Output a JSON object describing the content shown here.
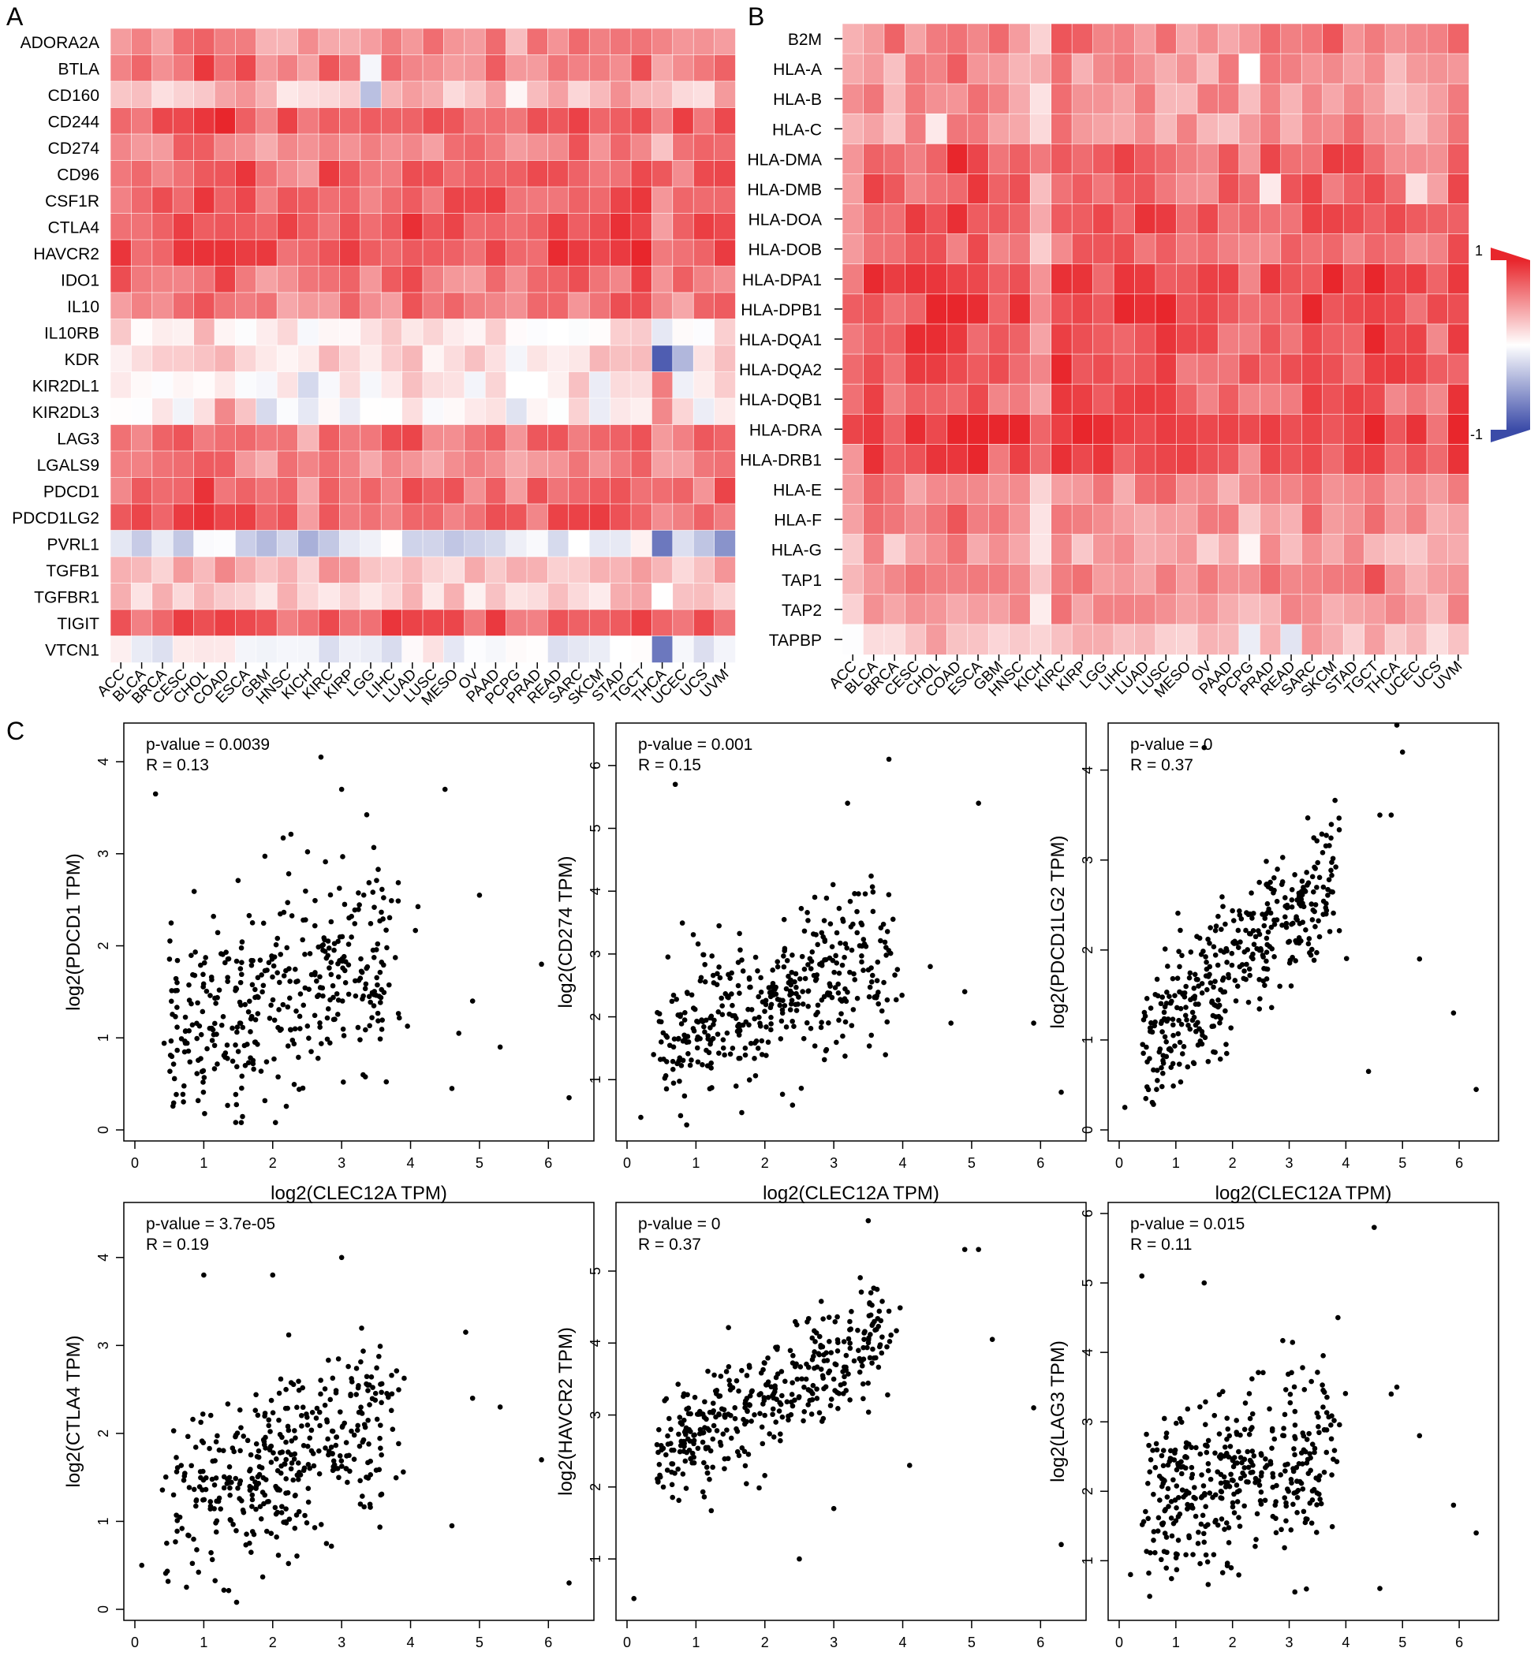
{
  "figure": {
    "panel_labels": [
      "A",
      "B",
      "C"
    ]
  },
  "colors": {
    "high": "#E8262C",
    "mid": "#FFFFFF",
    "low": "#3B4BA8",
    "point": "#000000",
    "cell_border": "#FFFFFF"
  },
  "chart_data": [
    {
      "type": "heatmap",
      "panel": "A",
      "rows": [
        "ADORA2A",
        "BTLA",
        "CD160",
        "CD244",
        "CD274",
        "CD96",
        "CSF1R",
        "CTLA4",
        "HAVCR2",
        "IDO1",
        "IL10",
        "IL10RB",
        "KDR",
        "KIR2DL1",
        "KIR2DL3",
        "LAG3",
        "LGALS9",
        "PDCD1",
        "PDCD1LG2",
        "PVRL1",
        "TGFB1",
        "TGFBR1",
        "TIGIT",
        "VTCN1"
      ],
      "columns": [
        "ACC",
        "BLCA",
        "BRCA",
        "CESC",
        "CHOL",
        "COAD",
        "ESCA",
        "GBM",
        "HNSC",
        "KICH",
        "KIRC",
        "KIRP",
        "LGG",
        "LIHC",
        "LUAD",
        "LUSC",
        "MESO",
        "OV",
        "PAAD",
        "PCPG",
        "PRAD",
        "READ",
        "SARC",
        "SKCM",
        "STAD",
        "TGCT",
        "THCA",
        "UCEC",
        "UCS",
        "UVM"
      ],
      "row_base": [
        0.5,
        0.6,
        0.25,
        0.75,
        0.55,
        0.7,
        0.7,
        0.72,
        0.8,
        0.6,
        0.55,
        0.05,
        0.15,
        0.02,
        0.02,
        0.6,
        0.5,
        0.65,
        0.7,
        -0.2,
        0.3,
        0.2,
        0.75,
        -0.08
      ],
      "col_adjust": [
        0.05,
        0.0,
        0.02,
        0.05,
        0.15,
        0.15,
        0.1,
        -0.05,
        0.0,
        -0.1,
        0.05,
        0.0,
        -0.05,
        0.05,
        0.1,
        0.05,
        0.0,
        0.0,
        0.05,
        -0.05,
        0.0,
        0.05,
        0.1,
        0.05,
        0.1,
        0.15,
        -0.1,
        0.0,
        0.0,
        0.05
      ],
      "special": [
        {
          "row": "KDR",
          "col": "THCA",
          "value": -0.9
        },
        {
          "row": "KDR",
          "col": "UCEC",
          "value": -0.4
        },
        {
          "row": "PVRL1",
          "col": "THCA",
          "value": -0.75
        },
        {
          "row": "PVRL1",
          "col": "UVM",
          "value": -0.6
        },
        {
          "row": "VTCN1",
          "col": "THCA",
          "value": -0.75
        },
        {
          "row": "KIR2DL3",
          "col": "COAD",
          "value": 0.55
        },
        {
          "row": "KIR2DL1",
          "col": "THCA",
          "value": 0.6
        },
        {
          "row": "KIR2DL3",
          "col": "THCA",
          "value": 0.55
        },
        {
          "row": "CD160",
          "col": "LGG",
          "value": -0.35
        },
        {
          "row": "BTLA",
          "col": "LGG",
          "value": -0.05
        }
      ],
      "value_range": [
        -1,
        1
      ]
    },
    {
      "type": "heatmap",
      "panel": "B",
      "rows": [
        "B2M",
        "HLA-A",
        "HLA-B",
        "HLA-C",
        "HLA-DMA",
        "HLA-DMB",
        "HLA-DOA",
        "HLA-DOB",
        "HLA-DPA1",
        "HLA-DPB1",
        "HLA-DQA1",
        "HLA-DQA2",
        "HLA-DQB1",
        "HLA-DRA",
        "HLA-DRB1",
        "HLA-E",
        "HLA-F",
        "HLA-G",
        "TAP1",
        "TAP2",
        "TAPBP"
      ],
      "columns": [
        "ACC",
        "BLCA",
        "BRCA",
        "CESC",
        "CHOL",
        "COAD",
        "ESCA",
        "GBM",
        "HNSC",
        "KICH",
        "KIRC",
        "KIRP",
        "LGG",
        "LIHC",
        "LUAD",
        "LUSC",
        "MESO",
        "OV",
        "PAAD",
        "PCPG",
        "PRAD",
        "READ",
        "SARC",
        "SKCM",
        "STAD",
        "TGCT",
        "THCA",
        "UCEC",
        "UCS",
        "UVM"
      ],
      "row_base": [
        0.55,
        0.45,
        0.45,
        0.45,
        0.7,
        0.65,
        0.75,
        0.6,
        0.8,
        0.8,
        0.75,
        0.75,
        0.7,
        0.85,
        0.75,
        0.5,
        0.5,
        0.35,
        0.5,
        0.4,
        0.25
      ],
      "col_adjust": [
        -0.1,
        0.05,
        0.0,
        0.05,
        0.1,
        0.15,
        0.1,
        0.0,
        0.05,
        -0.2,
        0.1,
        0.05,
        0.05,
        0.05,
        0.05,
        0.05,
        0.0,
        0.0,
        0.0,
        -0.1,
        0.05,
        0.0,
        0.1,
        0.1,
        0.1,
        0.15,
        0.0,
        0.0,
        -0.05,
        0.1
      ],
      "special": [
        {
          "row": "HLA-A",
          "col": "PCPG",
          "value": 0.0
        },
        {
          "row": "HLA-DMB",
          "col": "PRAD",
          "value": 0.1
        },
        {
          "row": "HLA-DMB",
          "col": "UCEC",
          "value": 0.15
        },
        {
          "row": "TAPBP",
          "col": "PCPG",
          "value": -0.1
        },
        {
          "row": "TAPBP",
          "col": "READ",
          "value": -0.15
        },
        {
          "row": "HLA-C",
          "col": "CHOL",
          "value": 0.1
        },
        {
          "row": "HLA-G",
          "col": "PCPG",
          "value": 0.05
        }
      ],
      "value_range": [
        -1,
        1
      ],
      "legend": {
        "max_label": "1",
        "min_label": "-1"
      }
    },
    {
      "type": "scatter",
      "panel": "C",
      "title": "p-value = 0.0039",
      "r_text": "R = 0.13",
      "xlabel": "log2(CLEC12A TPM)",
      "ylabel": "log2(PDCD1 TPM)",
      "xlim": [
        0,
        6.5
      ],
      "ylim": [
        0,
        4.3
      ],
      "xticks": [
        0,
        1,
        2,
        3,
        4,
        5,
        6
      ],
      "yticks": [
        0,
        1,
        2,
        3,
        4
      ],
      "slope": 0.25,
      "intercept": 1.0,
      "noise": 0.75,
      "n": 400,
      "seed": 11,
      "outliers": [
        [
          6.3,
          0.35
        ],
        [
          5.9,
          1.8
        ],
        [
          5.3,
          0.9
        ],
        [
          5.0,
          2.55
        ],
        [
          4.9,
          1.4
        ],
        [
          4.6,
          0.45
        ],
        [
          4.7,
          1.05
        ],
        [
          4.5,
          3.7
        ],
        [
          0.3,
          3.65
        ],
        [
          2.7,
          4.05
        ],
        [
          3.0,
          3.7
        ]
      ]
    },
    {
      "type": "scatter",
      "panel": "C",
      "title": "p-value = 0.001",
      "r_text": "R = 0.15",
      "xlabel": "log2(CLEC12A TPM)",
      "ylabel": "log2(CD274 TPM)",
      "xlim": [
        0,
        6.5
      ],
      "ylim": [
        0.2,
        6.5
      ],
      "xticks": [
        0,
        1,
        2,
        3,
        4,
        5,
        6
      ],
      "yticks": [
        1,
        2,
        3,
        4,
        5,
        6
      ],
      "slope": 0.35,
      "intercept": 1.5,
      "noise": 0.8,
      "n": 400,
      "seed": 23,
      "outliers": [
        [
          6.3,
          0.8
        ],
        [
          5.9,
          1.9
        ],
        [
          5.1,
          5.4
        ],
        [
          4.9,
          2.4
        ],
        [
          4.7,
          1.9
        ],
        [
          4.4,
          2.8
        ],
        [
          3.8,
          6.1
        ],
        [
          3.2,
          5.4
        ],
        [
          0.7,
          5.7
        ],
        [
          0.2,
          0.4
        ]
      ]
    },
    {
      "type": "scatter",
      "panel": "C",
      "title": "p-value = 0",
      "r_text": "R = 0.37",
      "xlabel": "log2(CLEC12A TPM)",
      "ylabel": "log2(PDCD1LG2 TPM)",
      "xlim": [
        0,
        6.5
      ],
      "ylim": [
        0,
        4.4
      ],
      "xticks": [
        0,
        1,
        2,
        3,
        4,
        5,
        6
      ],
      "yticks": [
        0,
        1,
        2,
        3,
        4
      ],
      "slope": 0.55,
      "intercept": 0.7,
      "noise": 0.5,
      "n": 400,
      "seed": 37,
      "outliers": [
        [
          6.3,
          0.45
        ],
        [
          5.9,
          1.3
        ],
        [
          5.3,
          1.9
        ],
        [
          4.6,
          3.5
        ],
        [
          4.9,
          4.5
        ],
        [
          5.0,
          4.2
        ],
        [
          4.4,
          0.65
        ],
        [
          4.8,
          3.5
        ],
        [
          1.5,
          4.25
        ],
        [
          0.1,
          0.25
        ]
      ]
    },
    {
      "type": "scatter",
      "panel": "C",
      "title": "p-value = 3.7e-05",
      "r_text": "R = 0.19",
      "xlabel": "log2(CLEC12A TPM)",
      "ylabel": "log2(CTLA4 TPM)",
      "xlim": [
        0,
        6.5
      ],
      "ylim": [
        0,
        4.5
      ],
      "xticks": [
        0,
        1,
        2,
        3,
        4,
        5,
        6
      ],
      "yticks": [
        0,
        1,
        2,
        3,
        4
      ],
      "slope": 0.35,
      "intercept": 0.9,
      "noise": 0.65,
      "n": 400,
      "seed": 51,
      "outliers": [
        [
          6.3,
          0.3
        ],
        [
          5.9,
          1.7
        ],
        [
          5.3,
          2.3
        ],
        [
          4.9,
          2.4
        ],
        [
          4.8,
          3.15
        ],
        [
          4.6,
          0.95
        ],
        [
          1.0,
          3.8
        ],
        [
          2.0,
          3.8
        ],
        [
          3.0,
          4.0
        ],
        [
          0.1,
          0.5
        ]
      ]
    },
    {
      "type": "scatter",
      "panel": "C",
      "title": "p-value = 0",
      "r_text": "R = 0.37",
      "xlabel": "log2(CLEC12A TPM)",
      "ylabel": "log2(HAVCR2 TPM)",
      "xlim": [
        0,
        6.5
      ],
      "ylim": [
        0.3,
        5.8
      ],
      "xticks": [
        0,
        1,
        2,
        3,
        4,
        5,
        6
      ],
      "yticks": [
        1,
        2,
        3,
        4,
        5
      ],
      "slope": 0.5,
      "intercept": 2.2,
      "noise": 0.5,
      "n": 400,
      "seed": 67,
      "outliers": [
        [
          6.3,
          1.2
        ],
        [
          5.9,
          3.1
        ],
        [
          5.3,
          4.05
        ],
        [
          5.1,
          5.3
        ],
        [
          4.9,
          5.3
        ],
        [
          4.1,
          2.3
        ],
        [
          3.0,
          1.7
        ],
        [
          2.5,
          1.0
        ],
        [
          0.1,
          0.45
        ],
        [
          3.5,
          5.7
        ]
      ]
    },
    {
      "type": "scatter",
      "panel": "C",
      "title": "p-value = 0.015",
      "r_text": "R = 0.11",
      "xlabel": "log2(CLEC12A TPM)",
      "ylabel": "log2(LAG3 TPM)",
      "xlim": [
        0,
        6.5
      ],
      "ylim": [
        0.3,
        6.0
      ],
      "xticks": [
        0,
        1,
        2,
        3,
        4,
        5,
        6
      ],
      "yticks": [
        1,
        2,
        3,
        4,
        5,
        6
      ],
      "slope": 0.2,
      "intercept": 1.8,
      "noise": 0.8,
      "n": 400,
      "seed": 79,
      "outliers": [
        [
          6.3,
          1.4
        ],
        [
          5.9,
          1.8
        ],
        [
          5.3,
          2.8
        ],
        [
          4.9,
          3.5
        ],
        [
          4.8,
          3.4
        ],
        [
          4.6,
          0.6
        ],
        [
          4.5,
          5.8
        ],
        [
          0.4,
          5.1
        ],
        [
          1.5,
          5.0
        ],
        [
          3.1,
          0.55
        ],
        [
          0.2,
          0.8
        ]
      ]
    }
  ]
}
